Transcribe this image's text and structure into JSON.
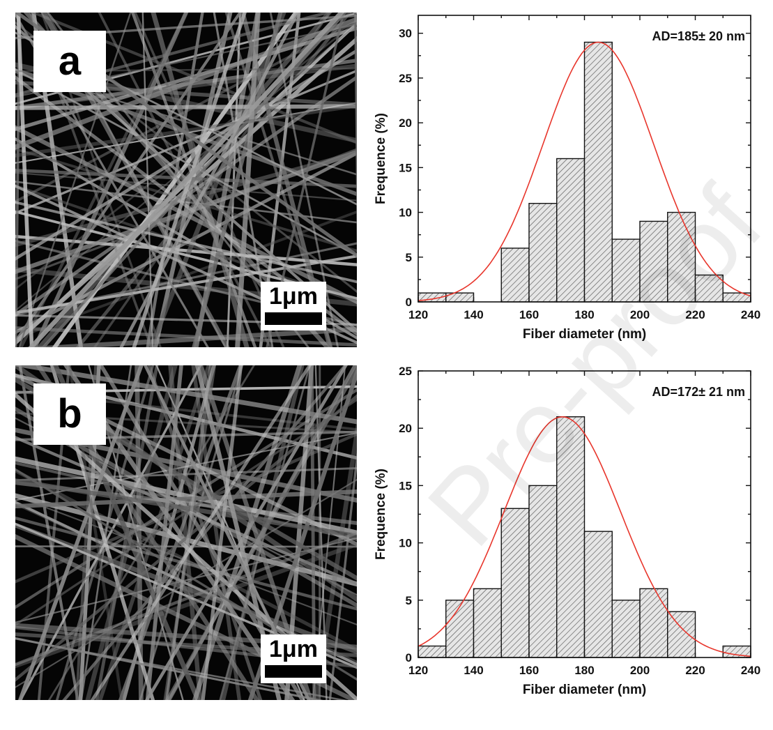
{
  "panels": [
    {
      "letter": "a",
      "scale_label": "1μm"
    },
    {
      "letter": "b",
      "scale_label": "1μm"
    }
  ],
  "watermark": "Pre-proof",
  "chart_data": [
    {
      "type": "bar",
      "panel": "a",
      "bin_edges": [
        120,
        130,
        140,
        150,
        160,
        170,
        180,
        190,
        200,
        210,
        220,
        230,
        240
      ],
      "values": [
        1,
        1,
        0,
        6,
        11,
        16,
        29,
        7,
        9,
        10,
        3,
        1
      ],
      "fit": {
        "type": "gaussian",
        "mean": 185,
        "sd": 20,
        "peak": 29
      },
      "annotation": "AD=185± 20 nm",
      "xlabel": "Fiber diameter (nm)",
      "ylabel": "Frequence (%)",
      "xlim": [
        120,
        240
      ],
      "ylim": [
        0,
        32
      ],
      "xticks": [
        120,
        140,
        160,
        180,
        200,
        220,
        240
      ],
      "yticks": [
        0,
        5,
        10,
        15,
        20,
        25,
        30
      ],
      "colors": {
        "bar_fill": "#e6e6e6",
        "hatch": "#555555",
        "fit_line": "#e8352b"
      }
    },
    {
      "type": "bar",
      "panel": "b",
      "bin_edges": [
        120,
        130,
        140,
        150,
        160,
        170,
        180,
        190,
        200,
        210,
        220,
        230,
        240
      ],
      "values": [
        1,
        5,
        6,
        13,
        15,
        21,
        11,
        5,
        6,
        4,
        0,
        1
      ],
      "fit": {
        "type": "gaussian",
        "mean": 172,
        "sd": 21,
        "peak": 21
      },
      "annotation": "AD=172± 21 nm",
      "xlabel": "Fiber diameter (nm)",
      "ylabel": "Frequence (%)",
      "xlim": [
        120,
        240
      ],
      "ylim": [
        0,
        25
      ],
      "xticks": [
        120,
        140,
        160,
        180,
        200,
        220,
        240
      ],
      "yticks": [
        0,
        5,
        10,
        15,
        20,
        25
      ],
      "colors": {
        "bar_fill": "#e6e6e6",
        "hatch": "#555555",
        "fit_line": "#e8352b"
      }
    }
  ]
}
